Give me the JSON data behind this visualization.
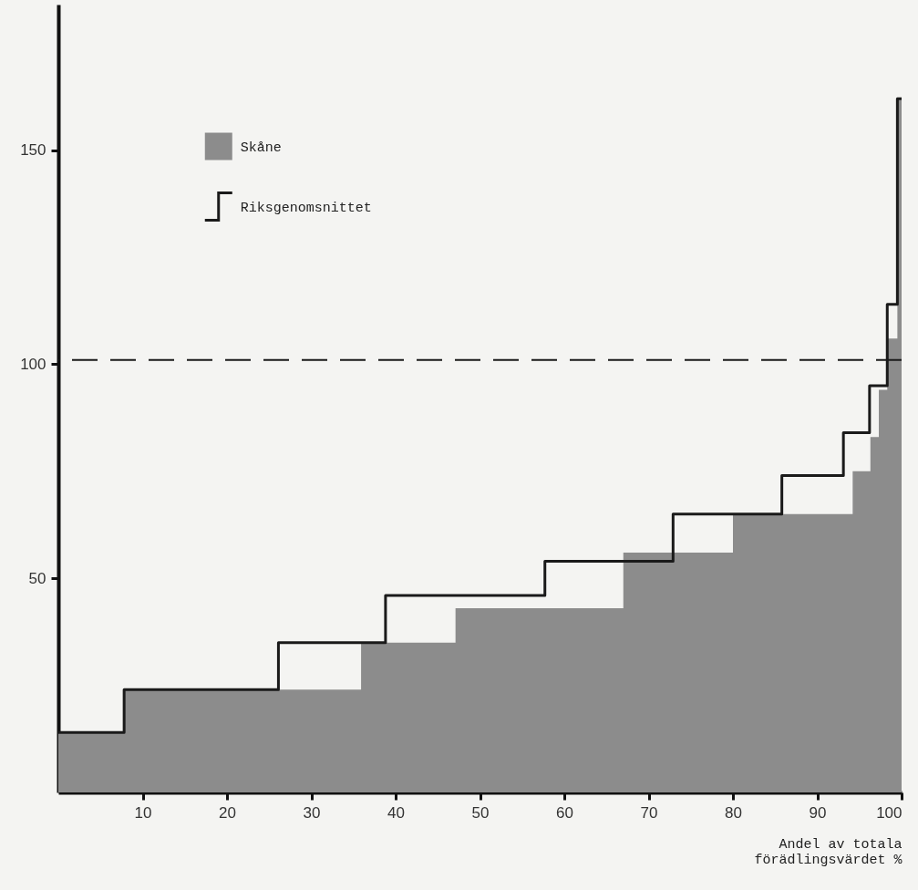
{
  "chart_data": {
    "type": "step",
    "xlabel": "Andel av totala förädlingsvärdet %",
    "xlim": [
      0,
      100
    ],
    "ylim": [
      0,
      184
    ],
    "xticks": [
      10,
      20,
      30,
      40,
      50,
      60,
      70,
      80,
      90,
      100
    ],
    "yticks": [
      50,
      100,
      150
    ],
    "legend": "top left",
    "ref_lines": [
      {
        "axis": "y",
        "value": 101,
        "line_style": "dashed",
        "color": "#1a1a1a"
      }
    ],
    "series": [
      {
        "name": "Skåne",
        "type": "area",
        "color": "#8c8c8c",
        "x": [
          0,
          7.8,
          35.9,
          47.1,
          67,
          80,
          94.2,
          96.3,
          97.3,
          98.3,
          99.5,
          100
        ],
        "values": [
          14,
          24,
          35,
          43,
          56,
          65,
          75,
          83,
          94,
          106,
          162,
          162
        ]
      },
      {
        "name": "Riksgenomsnittet",
        "color": "#1a1a1a",
        "x": [
          0,
          7.8,
          26.1,
          38.8,
          57.7,
          72.9,
          85.8,
          93.1,
          96.2,
          98.3,
          99.5,
          100
        ],
        "values": [
          14,
          24,
          35,
          46,
          54,
          65,
          74,
          84,
          95,
          114,
          162,
          162
        ]
      }
    ]
  }
}
